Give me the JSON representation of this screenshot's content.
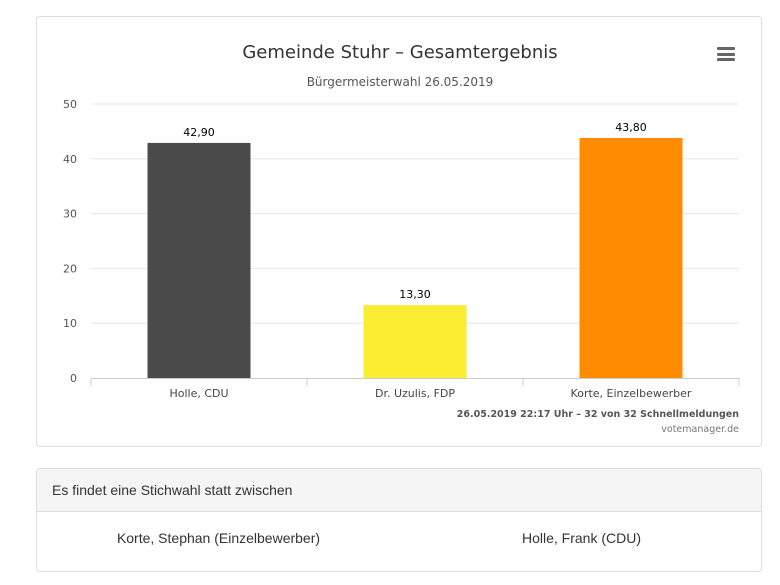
{
  "chart_data": {
    "type": "bar",
    "title": "Gemeinde Stuhr – Gesamtergebnis",
    "subtitle": "Bürgermeisterwahl 26.05.2019",
    "categories": [
      "Holle, CDU",
      "Dr. Uzulis, FDP",
      "Korte, Einzelbewerber"
    ],
    "values": [
      42.9,
      13.3,
      43.8
    ],
    "value_labels": [
      "42,90",
      "13,30",
      "43,80"
    ],
    "colors": [
      "#4a4a4a",
      "#f9ec31",
      "#ff8c00"
    ],
    "ylim": [
      0,
      50
    ],
    "yticks": [
      0,
      10,
      20,
      30,
      40,
      50
    ],
    "grid": true,
    "legend": "none",
    "note": "26.05.2019 22:17 Uhr – 32 von 32 Schnellmeldungen",
    "credit": "votemanager.de"
  },
  "menu_icon": "hamburger-menu-icon",
  "stichwahl": {
    "heading": "Es findet eine Stichwahl statt zwischen",
    "candidates": [
      "Korte, Stephan (Einzelbewerber)",
      "Holle, Frank (CDU)"
    ]
  }
}
